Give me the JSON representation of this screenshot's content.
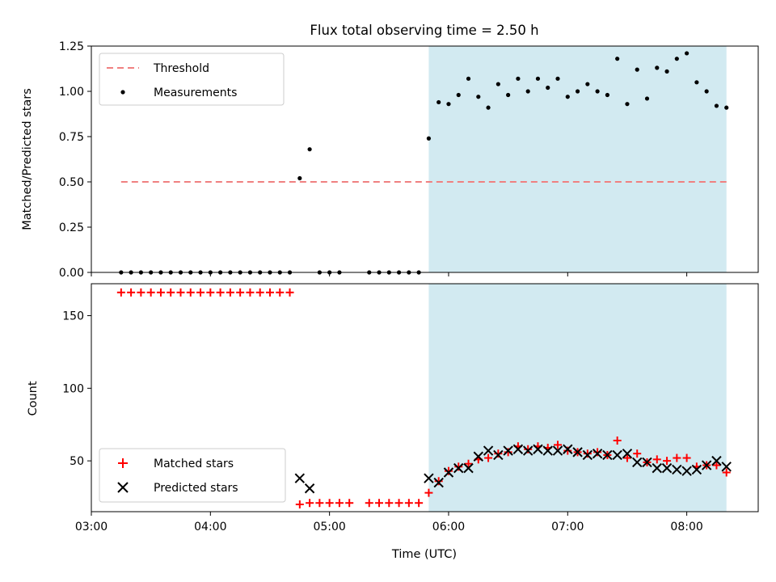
{
  "title": "Flux total observing time = 2.50 h",
  "colors": {
    "threshold": "#f08080",
    "measurement": "#000000",
    "matched": "#ff0000",
    "predicted": "#000000",
    "shade": "#add8e6"
  },
  "chart_data": [
    {
      "type": "scatter",
      "ylabel": "Matched/Predicted stars",
      "ylim": [
        0,
        1.25
      ],
      "xlim": [
        "03:00",
        "08:36"
      ],
      "yticks": [
        "0.00",
        "0.25",
        "0.50",
        "0.75",
        "1.00",
        "1.25"
      ],
      "legend_position": "upper-left",
      "shaded_interval": [
        "05:50",
        "08:20"
      ],
      "threshold": {
        "name": "Threshold",
        "value": 0.5,
        "x_range": [
          "03:15",
          "08:20"
        ]
      },
      "series": [
        {
          "name": "Measurements",
          "points": [
            [
              "03:15",
              0
            ],
            [
              "03:20",
              0
            ],
            [
              "03:25",
              0
            ],
            [
              "03:30",
              0
            ],
            [
              "03:35",
              0
            ],
            [
              "03:40",
              0
            ],
            [
              "03:45",
              0
            ],
            [
              "03:50",
              0
            ],
            [
              "03:55",
              0
            ],
            [
              "04:00",
              0
            ],
            [
              "04:05",
              0
            ],
            [
              "04:10",
              0
            ],
            [
              "04:15",
              0
            ],
            [
              "04:20",
              0
            ],
            [
              "04:25",
              0
            ],
            [
              "04:30",
              0
            ],
            [
              "04:35",
              0
            ],
            [
              "04:40",
              0
            ],
            [
              "04:45",
              0.52
            ],
            [
              "04:50",
              0.68
            ],
            [
              "04:55",
              0
            ],
            [
              "05:00",
              0
            ],
            [
              "05:05",
              0
            ],
            [
              "05:20",
              0
            ],
            [
              "05:25",
              0
            ],
            [
              "05:30",
              0
            ],
            [
              "05:35",
              0
            ],
            [
              "05:40",
              0
            ],
            [
              "05:45",
              0
            ],
            [
              "05:50",
              0.74
            ],
            [
              "05:55",
              0.94
            ],
            [
              "06:00",
              0.93
            ],
            [
              "06:05",
              0.98
            ],
            [
              "06:10",
              1.07
            ],
            [
              "06:15",
              0.97
            ],
            [
              "06:20",
              0.91
            ],
            [
              "06:25",
              1.04
            ],
            [
              "06:30",
              0.98
            ],
            [
              "06:35",
              1.07
            ],
            [
              "06:40",
              1.0
            ],
            [
              "06:45",
              1.07
            ],
            [
              "06:50",
              1.02
            ],
            [
              "06:55",
              1.07
            ],
            [
              "07:00",
              0.97
            ],
            [
              "07:05",
              1.0
            ],
            [
              "07:10",
              1.04
            ],
            [
              "07:15",
              1.0
            ],
            [
              "07:20",
              0.98
            ],
            [
              "07:25",
              1.18
            ],
            [
              "07:30",
              0.93
            ],
            [
              "07:35",
              1.12
            ],
            [
              "07:40",
              0.96
            ],
            [
              "07:45",
              1.13
            ],
            [
              "07:50",
              1.11
            ],
            [
              "07:55",
              1.18
            ],
            [
              "08:00",
              1.21
            ],
            [
              "08:05",
              1.05
            ],
            [
              "08:10",
              1.0
            ],
            [
              "08:15",
              0.92
            ],
            [
              "08:20",
              0.91
            ]
          ]
        }
      ]
    },
    {
      "type": "scatter",
      "xlabel": "Time (UTC)",
      "ylabel": "Count",
      "ylim": [
        15,
        172
      ],
      "xlim": [
        "03:00",
        "08:36"
      ],
      "xticks": [
        "03:00",
        "04:00",
        "05:00",
        "06:00",
        "07:00",
        "08:00"
      ],
      "yticks": [
        "50",
        "100",
        "150"
      ],
      "legend_position": "lower-left",
      "shaded_interval": [
        "05:50",
        "08:20"
      ],
      "series": [
        {
          "name": "Matched stars",
          "points": [
            [
              "03:15",
              166
            ],
            [
              "03:20",
              166
            ],
            [
              "03:25",
              166
            ],
            [
              "03:30",
              166
            ],
            [
              "03:35",
              166
            ],
            [
              "03:40",
              166
            ],
            [
              "03:45",
              166
            ],
            [
              "03:50",
              166
            ],
            [
              "03:55",
              166
            ],
            [
              "04:00",
              166
            ],
            [
              "04:05",
              166
            ],
            [
              "04:10",
              166
            ],
            [
              "04:15",
              166
            ],
            [
              "04:20",
              166
            ],
            [
              "04:25",
              166
            ],
            [
              "04:30",
              166
            ],
            [
              "04:35",
              166
            ],
            [
              "04:40",
              166
            ],
            [
              "04:45",
              20
            ],
            [
              "04:50",
              21
            ],
            [
              "04:55",
              21
            ],
            [
              "05:00",
              21
            ],
            [
              "05:05",
              21
            ],
            [
              "05:10",
              21
            ],
            [
              "05:20",
              21
            ],
            [
              "05:25",
              21
            ],
            [
              "05:30",
              21
            ],
            [
              "05:35",
              21
            ],
            [
              "05:40",
              21
            ],
            [
              "05:45",
              21
            ],
            [
              "05:50",
              28
            ],
            [
              "05:55",
              36
            ],
            [
              "06:00",
              43
            ],
            [
              "06:05",
              46
            ],
            [
              "06:10",
              48
            ],
            [
              "06:15",
              51
            ],
            [
              "06:20",
              52
            ],
            [
              "06:25",
              55
            ],
            [
              "06:30",
              56
            ],
            [
              "06:35",
              60
            ],
            [
              "06:40",
              58
            ],
            [
              "06:45",
              60
            ],
            [
              "06:50",
              59
            ],
            [
              "06:55",
              61
            ],
            [
              "07:00",
              57
            ],
            [
              "07:05",
              56
            ],
            [
              "07:10",
              55
            ],
            [
              "07:15",
              56
            ],
            [
              "07:20",
              54
            ],
            [
              "07:25",
              64
            ],
            [
              "07:30",
              52
            ],
            [
              "07:35",
              55
            ],
            [
              "07:40",
              49
            ],
            [
              "07:45",
              51
            ],
            [
              "07:50",
              50
            ],
            [
              "07:55",
              52
            ],
            [
              "08:00",
              52
            ],
            [
              "08:05",
              46
            ],
            [
              "08:10",
              47
            ],
            [
              "08:15",
              47
            ],
            [
              "08:20",
              42
            ]
          ]
        },
        {
          "name": "Predicted stars",
          "points": [
            [
              "04:45",
              38
            ],
            [
              "04:50",
              31
            ],
            [
              "05:50",
              38
            ],
            [
              "05:55",
              35
            ],
            [
              "06:00",
              42
            ],
            [
              "06:05",
              45
            ],
            [
              "06:10",
              45
            ],
            [
              "06:15",
              53
            ],
            [
              "06:20",
              57
            ],
            [
              "06:25",
              54
            ],
            [
              "06:30",
              57
            ],
            [
              "06:35",
              58
            ],
            [
              "06:40",
              57
            ],
            [
              "06:45",
              58
            ],
            [
              "06:50",
              57
            ],
            [
              "06:55",
              57
            ],
            [
              "07:00",
              58
            ],
            [
              "07:05",
              56
            ],
            [
              "07:10",
              54
            ],
            [
              "07:15",
              55
            ],
            [
              "07:20",
              54
            ],
            [
              "07:25",
              54
            ],
            [
              "07:30",
              55
            ],
            [
              "07:35",
              49
            ],
            [
              "07:40",
              49
            ],
            [
              "07:45",
              45
            ],
            [
              "07:50",
              45
            ],
            [
              "07:55",
              44
            ],
            [
              "08:00",
              43
            ],
            [
              "08:05",
              44
            ],
            [
              "08:10",
              47
            ],
            [
              "08:15",
              50
            ],
            [
              "08:20",
              46
            ]
          ]
        }
      ]
    }
  ]
}
